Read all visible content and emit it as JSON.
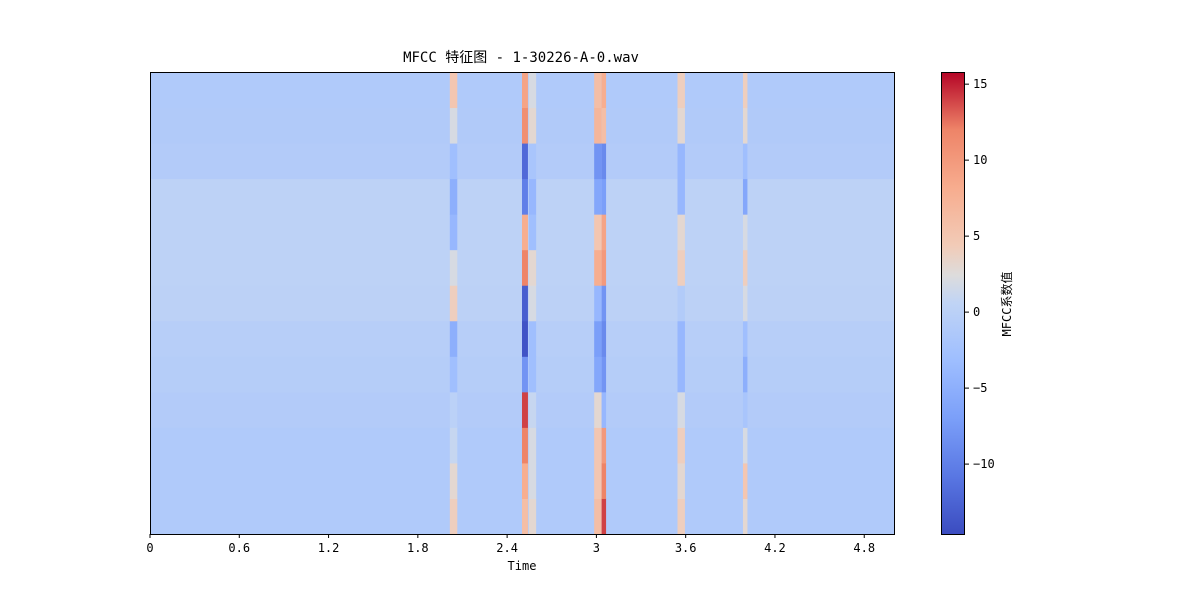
{
  "chart_data": {
    "type": "heatmap",
    "title": "MFCC 特征图 - 1-30226-A-0.wav",
    "xlabel": "Time",
    "ylabel": "",
    "xlim": [
      0,
      5.0
    ],
    "x_ticks": [
      0,
      0.6,
      1.2,
      1.8,
      2.4,
      3,
      3.6,
      4.2,
      4.8
    ],
    "x_tick_labels": [
      "0",
      "0.6",
      "1.2",
      "1.8",
      "2.4",
      "3",
      "3.6",
      "4.2",
      "4.8"
    ],
    "n_coefficients": 13,
    "colormap": "coolwarm",
    "colorbar": {
      "label": "MFCC系数值",
      "range": [
        -14.6,
        15.8
      ],
      "ticks": [
        -10,
        -5,
        0,
        5,
        10,
        15
      ],
      "tick_labels": [
        "−10",
        "−5",
        "0",
        "5",
        "10",
        "15"
      ]
    },
    "row_baseline_values": [
      -1.2,
      -1.2,
      -1.2,
      -0.9,
      -0.6,
      -0.4,
      0.1,
      0.3,
      0.3,
      0.3,
      -0.9,
      -1.1,
      -1.2
    ],
    "events": [
      {
        "time": 2.04,
        "width": 0.05,
        "values": [
          4,
          3,
          1,
          0,
          -3,
          -5,
          4,
          2,
          -4,
          -5,
          -3,
          2,
          5
        ]
      },
      {
        "time": 2.52,
        "width": 0.04,
        "values": [
          6,
          8,
          12,
          14,
          -8,
          -14,
          -13,
          12,
          8,
          -10,
          -12,
          11,
          9
        ]
      },
      {
        "time": 2.57,
        "width": 0.05,
        "values": [
          3,
          2,
          2,
          1,
          -3,
          -3,
          2,
          3,
          -3,
          -4,
          -2,
          3,
          2
        ]
      },
      {
        "time": 3.01,
        "width": 0.05,
        "values": [
          6,
          5,
          5,
          3,
          -6,
          -7,
          -4,
          8,
          5,
          -6,
          -8,
          7,
          6
        ]
      },
      {
        "time": 3.05,
        "width": 0.03,
        "values": [
          14,
          12,
          10,
          -4,
          -8,
          -9,
          -8,
          10,
          9,
          -7,
          -9,
          6,
          8
        ]
      },
      {
        "time": 3.57,
        "width": 0.05,
        "values": [
          4,
          3,
          4,
          2,
          -4,
          -4,
          -1,
          4,
          3,
          -4,
          -4,
          3,
          4
        ]
      },
      {
        "time": 4.0,
        "width": 0.03,
        "values": [
          3,
          5,
          2,
          -2,
          -5,
          -3,
          2,
          4,
          2,
          -6,
          -3,
          3,
          4
        ]
      }
    ]
  }
}
